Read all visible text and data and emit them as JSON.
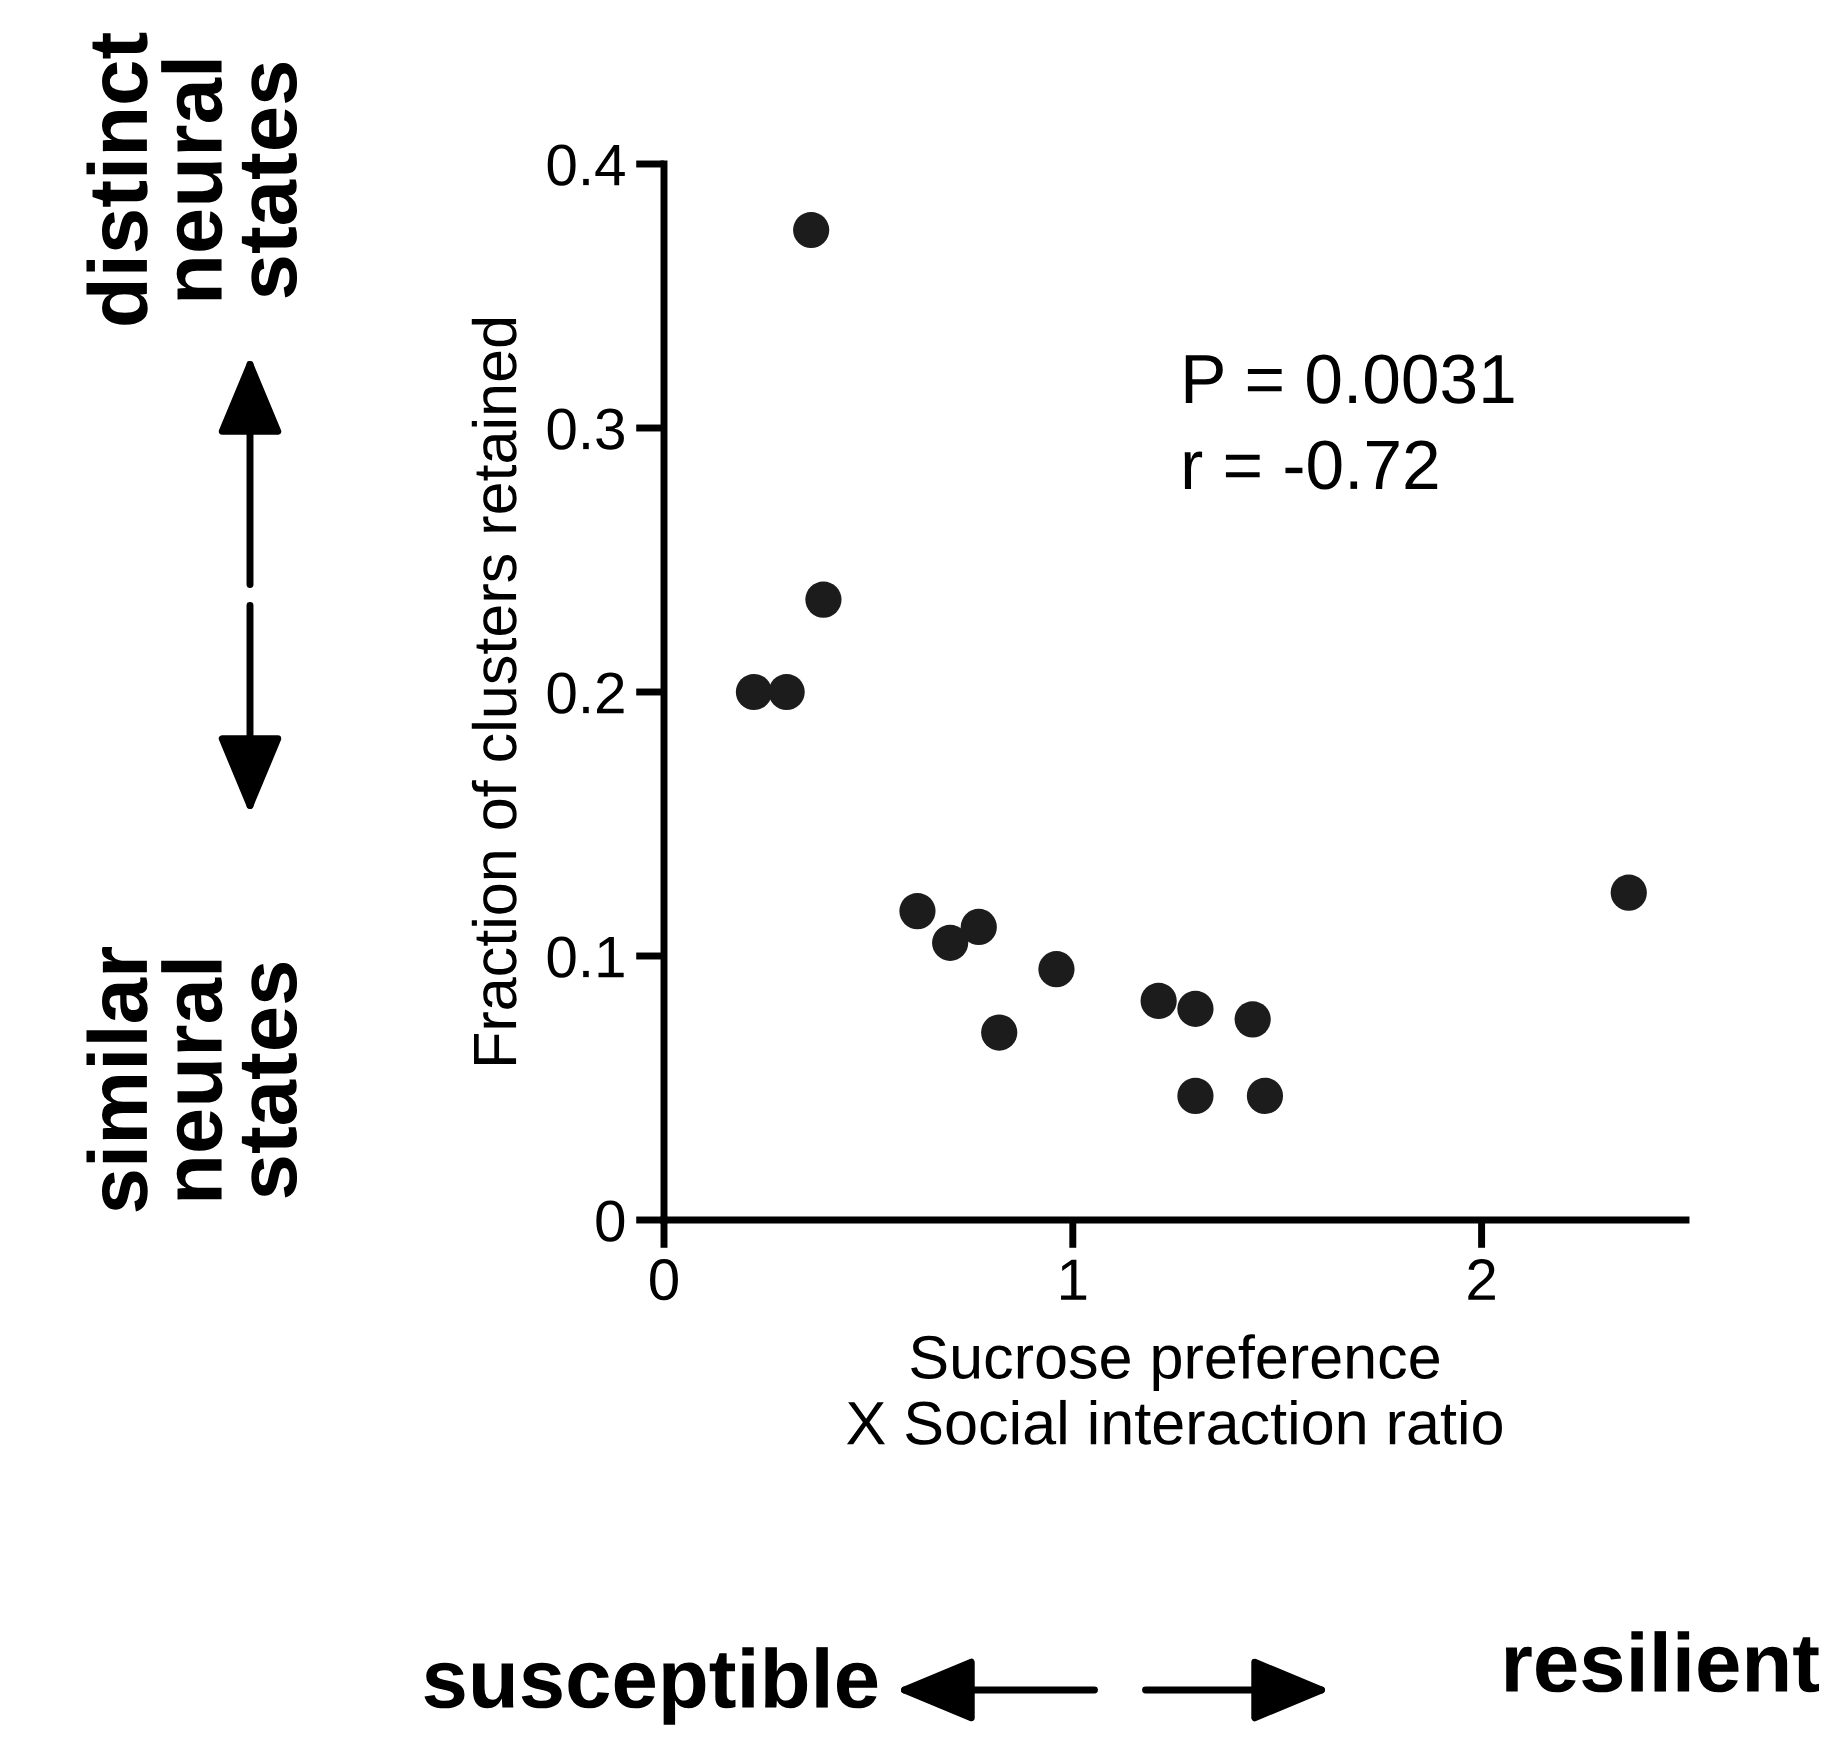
{
  "chart_data": {
    "type": "scatter",
    "xlabel": "Sucrose preference\nX Social interaction ratio",
    "ylabel": "Fraction of clusters retained",
    "x": [
      0.36,
      0.39,
      0.22,
      0.3,
      0.62,
      0.7,
      0.77,
      0.82,
      0.96,
      1.21,
      1.3,
      1.44,
      1.3,
      1.47,
      2.36
    ],
    "series": [
      {
        "color": "#1c1c1c",
        "values": [
          0.375,
          0.235,
          0.2,
          0.2,
          0.117,
          0.105,
          0.111,
          0.071,
          0.095,
          0.083,
          0.08,
          0.076,
          0.047,
          0.047,
          0.124
        ]
      }
    ],
    "marker": "circle",
    "xlim": [
      0,
      2.5
    ],
    "ylim": [
      0,
      0.4
    ],
    "xticks": [
      0,
      1,
      2
    ],
    "yticks": [
      0,
      0.1,
      0.2,
      0.3,
      0.4
    ],
    "grid": false,
    "annotations": [
      "P = 0.0031",
      "r = -0.72",
      "distinct\nneural\nstates",
      "similar\nneural\nstates",
      "susceptible",
      "resilient"
    ]
  }
}
